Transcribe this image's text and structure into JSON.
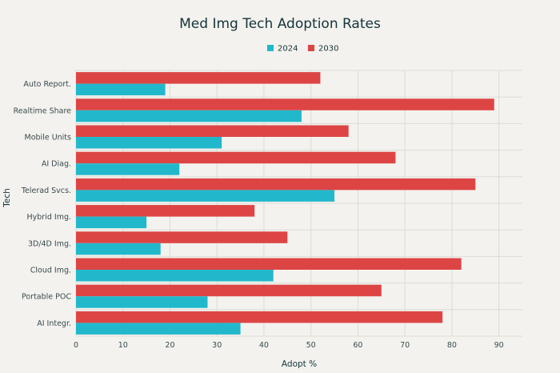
{
  "chart_data": {
    "type": "bar",
    "orientation": "horizontal",
    "title": "Med Img Tech Adoption Rates",
    "xlabel": "Adopt %",
    "ylabel": "Tech",
    "xlim": [
      0,
      95
    ],
    "xticks": [
      0,
      10,
      20,
      30,
      40,
      50,
      60,
      70,
      80,
      90
    ],
    "grid": true,
    "legend_position": "top-center",
    "categories": [
      "Auto Report.",
      "Realtime Share",
      "Mobile Units",
      "AI Diag.",
      "Telerad Svcs.",
      "Hybrid Img.",
      "3D/4D Img.",
      "Cloud Img.",
      "Portable POC",
      "AI Integr."
    ],
    "series": [
      {
        "name": "2024",
        "color": "#22b8cc",
        "values": [
          19,
          48,
          31,
          22,
          55,
          15,
          18,
          42,
          28,
          35
        ]
      },
      {
        "name": "2030",
        "color": "#dd4545",
        "values": [
          52,
          89,
          58,
          68,
          85,
          38,
          45,
          82,
          65,
          78
        ]
      }
    ]
  }
}
